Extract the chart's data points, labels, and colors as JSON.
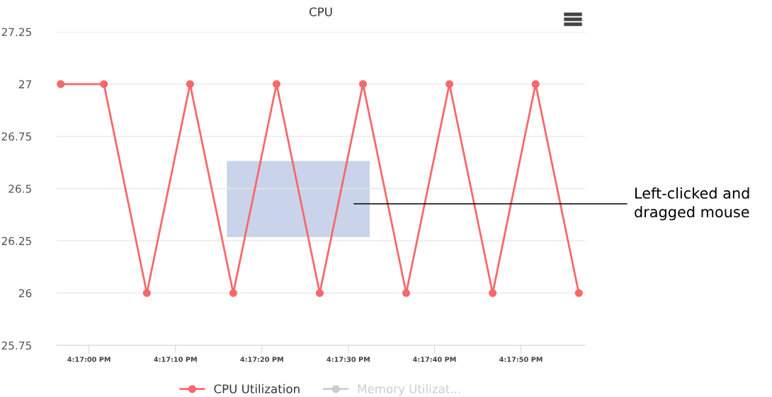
{
  "chart_data": {
    "type": "line",
    "title": "CPU",
    "x": [
      16.28242,
      16.28381,
      16.28519,
      16.28658,
      16.28797,
      16.28936,
      16.29075,
      16.29214,
      16.29353,
      16.29492,
      16.29631,
      16.29769,
      16.29908
    ],
    "series": [
      {
        "name": "CPU Utilization",
        "color": "#f7686b",
        "values": [
          27,
          27,
          26,
          27,
          26,
          27,
          26,
          27,
          26,
          27,
          26,
          27,
          26
        ]
      },
      {
        "name": "Memory Utilizat...",
        "color": "#cccccc",
        "values": [
          null,
          null,
          null,
          null,
          null,
          null,
          null,
          null,
          null,
          null,
          null,
          null,
          null
        ]
      }
    ],
    "xlim": [
      16.28229,
      16.29928
    ],
    "xticks": [
      {
        "value": 16.28333,
        "label": "4:17:00 PM"
      },
      {
        "value": 16.28611,
        "label": "4:17:10 PM"
      },
      {
        "value": 16.28889,
        "label": "4:17:20 PM"
      },
      {
        "value": 16.29167,
        "label": "4:17:30 PM"
      },
      {
        "value": 16.29444,
        "label": "4:17:40 PM"
      },
      {
        "value": 16.29722,
        "label": "4:17:50 PM"
      }
    ],
    "ylim": [
      25.75,
      27.25
    ],
    "yticks": [
      25.75,
      26,
      {
        "value": 26.25,
        "label": "26.25"
      },
      {
        "value": 26.5,
        "label": "26.5"
      },
      {
        "value": 26.75,
        "label": "26.75"
      },
      27,
      {
        "value": 27.25,
        "label": "27.25"
      }
    ],
    "grid": "y",
    "legend": "bottom",
    "marker": "circle",
    "line_style": "solid",
    "annotations": [
      "Left-clicked and dragged mouse"
    ]
  }
}
